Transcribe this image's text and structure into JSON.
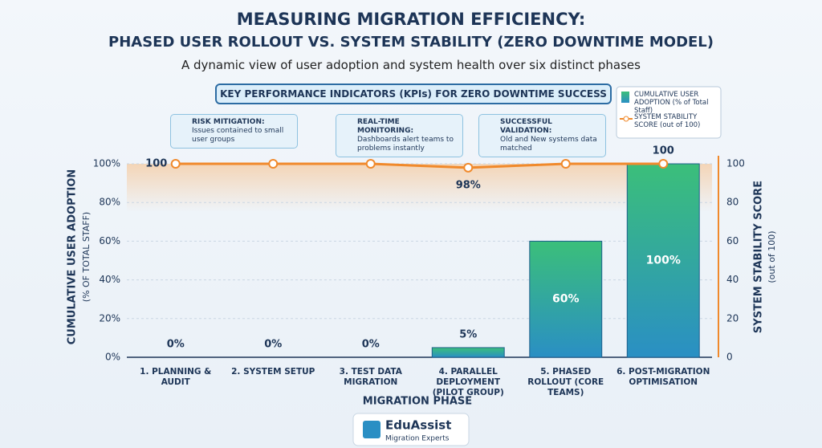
{
  "chart_data": {
    "type": "bar",
    "title": "MEASURING MIGRATION EFFICIENCY:",
    "title_line2": "PHASED USER ROLLOUT VS. SYSTEM STABILITY (ZERO DOWNTIME MODEL)",
    "subtitle": "A dynamic view of user adoption and system health over six distinct phases",
    "banner": "KEY PERFORMANCE INDICATORS (KPIs) FOR ZERO DOWNTIME SUCCESS",
    "annotations": [
      {
        "title": "RISK MITIGATION:",
        "text": "Issues contained to small user groups"
      },
      {
        "title": "REAL-TIME MONITORING:",
        "text": "Dashboards alert teams to problems instantly"
      },
      {
        "title": "SUCCESSFUL VALIDATION:",
        "text": "Old and New systems data matched"
      }
    ],
    "categories": [
      "1. PLANNING & AUDIT",
      "2. SYSTEM SETUP",
      "3. TEST DATA MIGRATION",
      "4. PARALLEL DEPLOYMENT (PILOT GROUP)",
      "5. PHASED ROLLOUT (CORE TEAMS)",
      "6. POST-MIGRATION OPTIMISATION"
    ],
    "series": [
      {
        "name": "CUMULATIVE USER ADOPTION (% of Total Staff)",
        "type": "bar",
        "color": "#2a8fc4",
        "values": [
          0,
          0,
          0,
          5,
          60,
          100
        ],
        "value_labels": [
          "0%",
          "0%",
          "0%",
          "5%",
          "60%",
          "100%"
        ]
      },
      {
        "name": "SYSTEM STABILITY SCORE (out of 100)",
        "type": "line",
        "axis": "y2",
        "color": "#f0892b",
        "values": [
          100,
          100,
          100,
          98,
          100,
          100
        ],
        "value_labels": [
          "100",
          null,
          null,
          "98%",
          null,
          "100"
        ]
      }
    ],
    "xlabel": "MIGRATION PHASE",
    "ylabel": "CUMULATIVE USER ADOPTION",
    "ylabel_sub": "(% OF TOTAL STAFF)",
    "y2label": "SYSTEM STABILITY SCORE",
    "y2label_sub": "(out of 100)",
    "ylim": [
      0,
      100
    ],
    "yticks": [
      {
        "value": 0,
        "label": "0%"
      },
      {
        "value": 20,
        "label": "20%"
      },
      {
        "value": 40,
        "label": "40%"
      },
      {
        "value": 60,
        "label": "60%"
      },
      {
        "value": 80,
        "label": "80%"
      },
      {
        "value": 100,
        "label": "100%"
      }
    ],
    "y2lim": [
      0,
      100
    ],
    "y2ticks": [
      0,
      20,
      40,
      60,
      80,
      100
    ],
    "grid": true,
    "legend": "top-right",
    "brand": "EduAssist",
    "brand_sub": "Migration Experts"
  }
}
